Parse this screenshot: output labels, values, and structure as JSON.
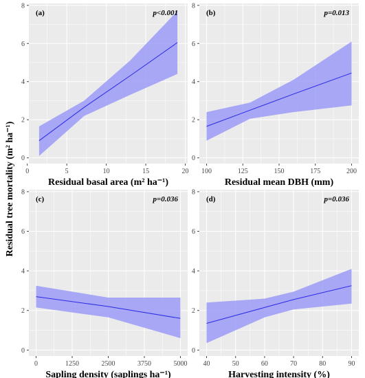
{
  "figure": {
    "ylabel": "Residual tree mortality (m² ha⁻¹)",
    "band_color": "#9b9bf7",
    "line_color": "#2a2ae6",
    "panel_bg": "#ebebeb",
    "grid_color": "#ffffff"
  },
  "chart_data": [
    {
      "type": "line",
      "panel_label": "(a)",
      "p_value": "p<0.001",
      "xlabel": "Residual basal area (m² ha⁻¹)",
      "xlim": [
        0.2,
        20.3
      ],
      "ylim": [
        -0.3,
        8.1
      ],
      "xticks": [
        0,
        5,
        10,
        15,
        20
      ],
      "xtick_labels": [
        "0",
        "5",
        "10",
        "15",
        "20"
      ],
      "yticks": [
        0,
        2,
        4,
        6,
        8
      ],
      "ytick_labels": [
        "0",
        "2",
        "4",
        "6",
        "8"
      ],
      "x": [
        1.5,
        7.2,
        13.0,
        19.0
      ],
      "y": [
        0.9,
        2.65,
        4.3,
        6.05
      ],
      "lower": [
        0.1,
        2.2,
        3.3,
        4.4
      ],
      "upper": [
        1.65,
        3.0,
        5.1,
        7.7
      ]
    },
    {
      "type": "line",
      "panel_label": "(b)",
      "p_value": "p=0.013",
      "xlabel": "Residual mean DBH (mm)",
      "xlim": [
        95,
        205
      ],
      "ylim": [
        -0.3,
        8.1
      ],
      "xticks": [
        100,
        125,
        150,
        175,
        200
      ],
      "xtick_labels": [
        "100",
        "125",
        "150",
        "175",
        "200"
      ],
      "yticks": [
        0,
        2,
        4,
        6,
        8
      ],
      "ytick_labels": [
        "0",
        "2",
        "4",
        "6",
        "8"
      ],
      "x": [
        100,
        130,
        160,
        200
      ],
      "y": [
        1.65,
        2.5,
        3.35,
        4.45
      ],
      "lower": [
        0.9,
        2.05,
        2.4,
        2.75
      ],
      "upper": [
        2.4,
        2.9,
        4.1,
        6.1
      ]
    },
    {
      "type": "line",
      "panel_label": "(c)",
      "p_value": "p=0.036",
      "xlabel": "Sapling density (saplings ha⁻¹)",
      "xlim": [
        -250,
        5250
      ],
      "ylim": [
        -0.3,
        8.1
      ],
      "xticks": [
        0,
        1250,
        2500,
        3750,
        5000
      ],
      "xtick_labels": [
        "0",
        "1250",
        "2500",
        "3750",
        "5000"
      ],
      "yticks": [
        0,
        2,
        4,
        6,
        8
      ],
      "ytick_labels": [
        "0",
        "2",
        "4",
        "6",
        "8"
      ],
      "x": [
        0,
        2500,
        5000
      ],
      "y": [
        2.7,
        2.2,
        1.6
      ],
      "lower": [
        2.15,
        1.65,
        0.6
      ],
      "upper": [
        3.25,
        2.65,
        2.65
      ]
    },
    {
      "type": "line",
      "panel_label": "(d)",
      "p_value": "p=0.036",
      "xlabel": "Harvesting intensity (%)",
      "xlim": [
        37.5,
        92.5
      ],
      "ylim": [
        -0.3,
        8.1
      ],
      "xticks": [
        40,
        50,
        60,
        70,
        80,
        90
      ],
      "xtick_labels": [
        "40",
        "50",
        "60",
        "70",
        "80",
        "90"
      ],
      "yticks": [
        0,
        2,
        4,
        6,
        8
      ],
      "ytick_labels": [
        "0",
        "2",
        "4",
        "6",
        "8"
      ],
      "x": [
        40,
        60,
        70,
        90
      ],
      "y": [
        1.35,
        2.15,
        2.55,
        3.25
      ],
      "lower": [
        0.35,
        1.65,
        2.05,
        2.35
      ],
      "upper": [
        2.4,
        2.6,
        2.95,
        4.1
      ]
    }
  ]
}
